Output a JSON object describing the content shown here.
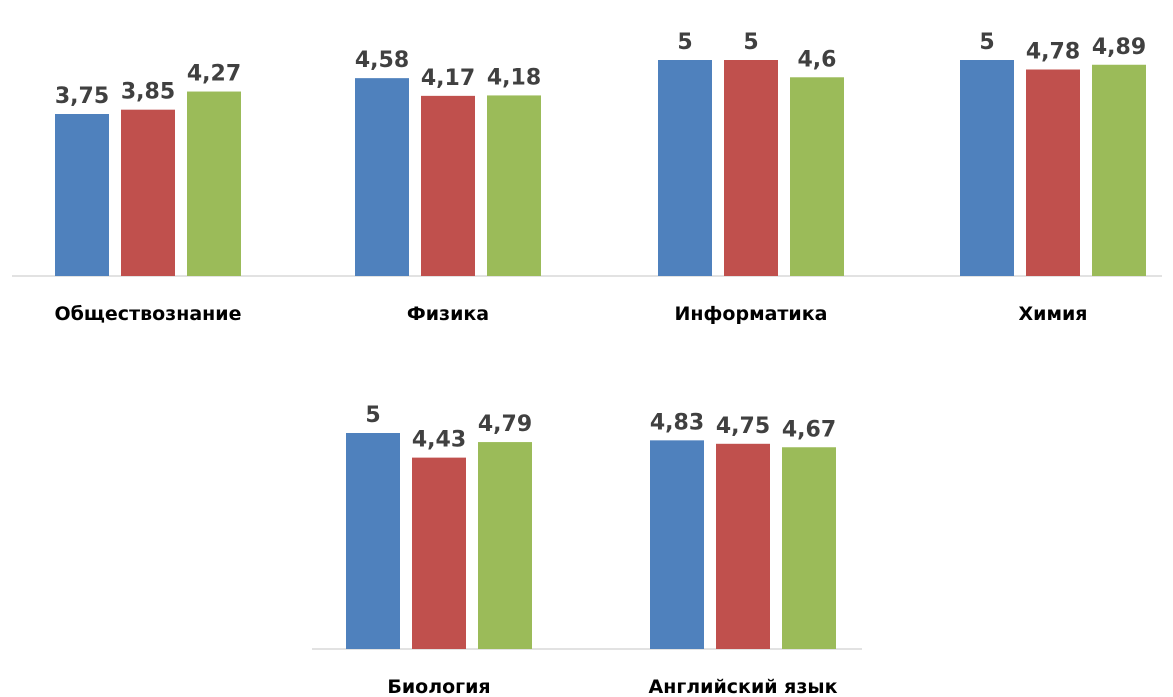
{
  "chart_data": {
    "type": "bar",
    "title": "",
    "xlabel": "",
    "ylabel": "",
    "ylim": [
      0,
      5
    ],
    "grid": false,
    "legend": "none",
    "series_colors": [
      "#4f81bd",
      "#c0504d",
      "#9bbb59"
    ],
    "categories": [
      {
        "label": "Обществознание",
        "values": [
          3.75,
          3.85,
          4.27
        ],
        "value_labels": [
          "3,75",
          "3,85",
          "4,27"
        ]
      },
      {
        "label": "Физика",
        "values": [
          4.58,
          4.17,
          4.18
        ],
        "value_labels": [
          "4,58",
          "4,17",
          "4,18"
        ]
      },
      {
        "label": "Информатика",
        "values": [
          5,
          5,
          4.6
        ],
        "value_labels": [
          "5",
          "5",
          "4,6"
        ]
      },
      {
        "label": "Химия",
        "values": [
          5,
          4.78,
          4.89
        ],
        "value_labels": [
          "5",
          "4,78",
          "4,89"
        ]
      },
      {
        "label": "Биология",
        "values": [
          5,
          4.43,
          4.79
        ],
        "value_labels": [
          "5",
          "4,43",
          "4,79"
        ]
      },
      {
        "label": "Английский язык",
        "values": [
          4.83,
          4.75,
          4.67
        ],
        "value_labels": [
          "4,83",
          "4,75",
          "4,67"
        ]
      }
    ]
  }
}
